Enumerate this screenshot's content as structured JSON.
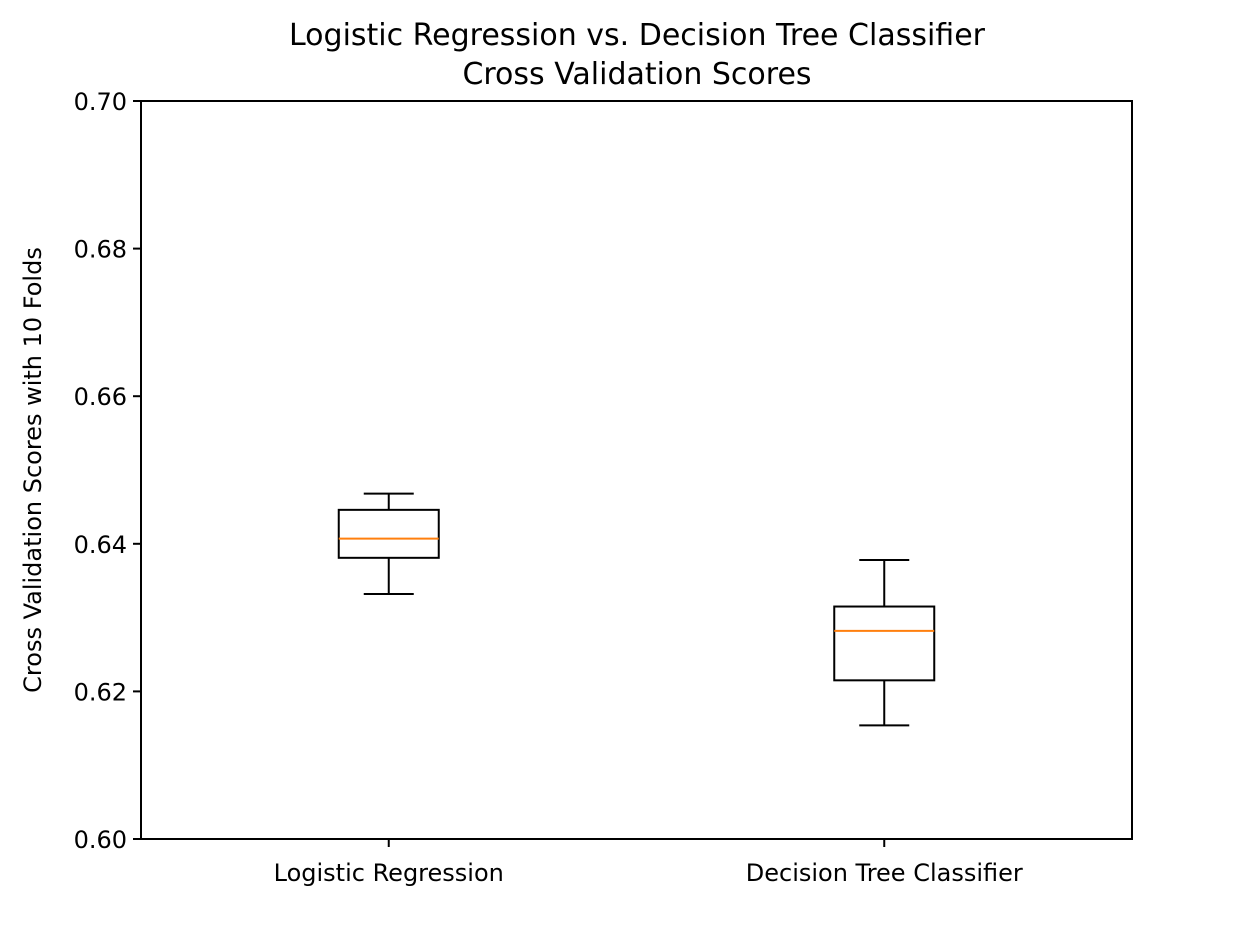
{
  "chart_data": {
    "type": "box",
    "title": "Logistic Regression vs. Decision Tree Classifier\nCross Validation Scores",
    "xlabel": "",
    "ylabel": "Cross Validation Scores with 10 Folds",
    "ylim": [
      0.6,
      0.7
    ],
    "yticks": [
      "0.60",
      "0.62",
      "0.64",
      "0.66",
      "0.68",
      "0.70"
    ],
    "categories": [
      "Logistic Regression",
      "Decision Tree Classifier"
    ],
    "boxes": [
      {
        "category": "Logistic Regression",
        "whisker_low": 0.6332,
        "q1": 0.6381,
        "median": 0.6407,
        "q3": 0.6446,
        "whisker_high": 0.6468
      },
      {
        "category": "Decision Tree Classifier",
        "whisker_low": 0.6154,
        "q1": 0.6215,
        "median": 0.6282,
        "q3": 0.6315,
        "whisker_high": 0.6378
      }
    ],
    "grid": false,
    "legend": "none",
    "colors": {
      "box": "#000000",
      "median": "#ff7f0e",
      "axes": "#000000"
    }
  }
}
